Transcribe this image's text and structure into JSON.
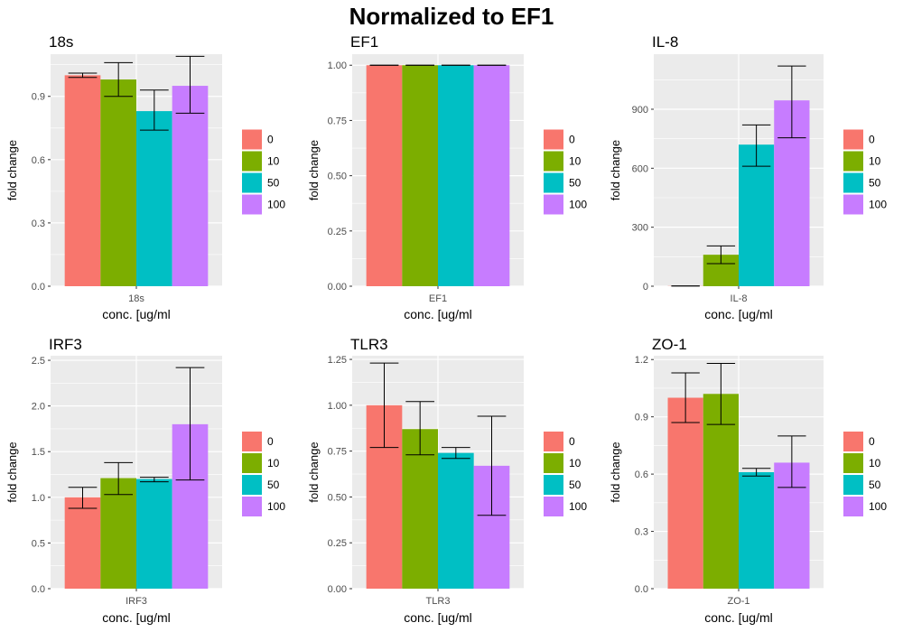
{
  "title": "Normalized to EF1",
  "legend": {
    "labels": [
      "0",
      "10",
      "50",
      "100"
    ],
    "colors": [
      "#F8766D",
      "#7CAE00",
      "#00BFC4",
      "#C77CFF"
    ]
  },
  "chart_data": [
    {
      "type": "bar",
      "title": "18s",
      "xlabel": "conc. [ug/ml",
      "ylabel": "fold change",
      "categories": [
        "18s"
      ],
      "ylim": [
        0,
        1.1
      ],
      "yticks": [
        0.0,
        0.3,
        0.6,
        0.9
      ],
      "ytick_labels": [
        "0.0",
        "0.3",
        "0.6",
        "0.9"
      ],
      "grid": true,
      "legend_position": "right",
      "series": [
        {
          "name": "0",
          "values": [
            1.0
          ],
          "error_low": [
            0.99
          ],
          "error_high": [
            1.01
          ]
        },
        {
          "name": "10",
          "values": [
            0.98
          ],
          "error_low": [
            0.9
          ],
          "error_high": [
            1.06
          ]
        },
        {
          "name": "50",
          "values": [
            0.83
          ],
          "error_low": [
            0.74
          ],
          "error_high": [
            0.93
          ]
        },
        {
          "name": "100",
          "values": [
            0.95
          ],
          "error_low": [
            0.82
          ],
          "error_high": [
            1.09
          ]
        }
      ]
    },
    {
      "type": "bar",
      "title": "EF1",
      "xlabel": "conc. [ug/ml",
      "ylabel": "fold change",
      "categories": [
        "EF1"
      ],
      "ylim": [
        0,
        1.05
      ],
      "yticks": [
        0.0,
        0.25,
        0.5,
        0.75,
        1.0
      ],
      "ytick_labels": [
        "0.00",
        "0.25",
        "0.50",
        "0.75",
        "1.00"
      ],
      "grid": true,
      "legend_position": "right",
      "series": [
        {
          "name": "0",
          "values": [
            1.0
          ],
          "error_low": [
            1.0
          ],
          "error_high": [
            1.0
          ]
        },
        {
          "name": "10",
          "values": [
            1.0
          ],
          "error_low": [
            1.0
          ],
          "error_high": [
            1.0
          ]
        },
        {
          "name": "50",
          "values": [
            1.0
          ],
          "error_low": [
            1.0
          ],
          "error_high": [
            1.0
          ]
        },
        {
          "name": "100",
          "values": [
            1.0
          ],
          "error_low": [
            1.0
          ],
          "error_high": [
            1.0
          ]
        }
      ]
    },
    {
      "type": "bar",
      "title": "IL-8",
      "xlabel": "conc. [ug/ml",
      "ylabel": "fold change",
      "categories": [
        "IL-8"
      ],
      "ylim": [
        0,
        1180
      ],
      "yticks": [
        0,
        300,
        600,
        900
      ],
      "ytick_labels": [
        "0",
        "300",
        "600",
        "900"
      ],
      "grid": true,
      "legend_position": "right",
      "series": [
        {
          "name": "0",
          "values": [
            1
          ],
          "error_low": [
            1
          ],
          "error_high": [
            1
          ]
        },
        {
          "name": "10",
          "values": [
            160
          ],
          "error_low": [
            115
          ],
          "error_high": [
            205
          ]
        },
        {
          "name": "50",
          "values": [
            720
          ],
          "error_low": [
            610
          ],
          "error_high": [
            820
          ]
        },
        {
          "name": "100",
          "values": [
            945
          ],
          "error_low": [
            755
          ],
          "error_high": [
            1120
          ]
        }
      ]
    },
    {
      "type": "bar",
      "title": "IRF3",
      "xlabel": "conc. [ug/ml",
      "ylabel": "fold change",
      "categories": [
        "IRF3"
      ],
      "ylim": [
        0,
        2.55
      ],
      "yticks": [
        0.0,
        0.5,
        1.0,
        1.5,
        2.0,
        2.5
      ],
      "ytick_labels": [
        "0.0",
        "0.5",
        "1.0",
        "1.5",
        "2.0",
        "2.5"
      ],
      "grid": true,
      "legend_position": "right",
      "series": [
        {
          "name": "0",
          "values": [
            1.0
          ],
          "error_low": [
            0.88
          ],
          "error_high": [
            1.11
          ]
        },
        {
          "name": "10",
          "values": [
            1.21
          ],
          "error_low": [
            1.03
          ],
          "error_high": [
            1.38
          ]
        },
        {
          "name": "50",
          "values": [
            1.2
          ],
          "error_low": [
            1.17
          ],
          "error_high": [
            1.22
          ]
        },
        {
          "name": "100",
          "values": [
            1.8
          ],
          "error_low": [
            1.19
          ],
          "error_high": [
            2.42
          ]
        }
      ]
    },
    {
      "type": "bar",
      "title": "TLR3",
      "xlabel": "conc. [ug/ml",
      "ylabel": "fold change",
      "categories": [
        "TLR3"
      ],
      "ylim": [
        0,
        1.27
      ],
      "yticks": [
        0.0,
        0.25,
        0.5,
        0.75,
        1.0,
        1.25
      ],
      "ytick_labels": [
        "0.00",
        "0.25",
        "0.50",
        "0.75",
        "1.00",
        "1.25"
      ],
      "grid": true,
      "legend_position": "right",
      "series": [
        {
          "name": "0",
          "values": [
            1.0
          ],
          "error_low": [
            0.77
          ],
          "error_high": [
            1.23
          ]
        },
        {
          "name": "10",
          "values": [
            0.87
          ],
          "error_low": [
            0.73
          ],
          "error_high": [
            1.02
          ]
        },
        {
          "name": "50",
          "values": [
            0.74
          ],
          "error_low": [
            0.71
          ],
          "error_high": [
            0.77
          ]
        },
        {
          "name": "100",
          "values": [
            0.67
          ],
          "error_low": [
            0.4
          ],
          "error_high": [
            0.94
          ]
        }
      ]
    },
    {
      "type": "bar",
      "title": "ZO-1",
      "xlabel": "conc. [ug/ml",
      "ylabel": "fold change",
      "categories": [
        "ZO-1"
      ],
      "ylim": [
        0,
        1.22
      ],
      "yticks": [
        0.0,
        0.3,
        0.6,
        0.9,
        1.2
      ],
      "ytick_labels": [
        "0.0",
        "0.3",
        "0.6",
        "0.9",
        "1.2"
      ],
      "grid": true,
      "legend_position": "right",
      "series": [
        {
          "name": "0",
          "values": [
            1.0
          ],
          "error_low": [
            0.87
          ],
          "error_high": [
            1.13
          ]
        },
        {
          "name": "10",
          "values": [
            1.02
          ],
          "error_low": [
            0.86
          ],
          "error_high": [
            1.18
          ]
        },
        {
          "name": "50",
          "values": [
            0.61
          ],
          "error_low": [
            0.59
          ],
          "error_high": [
            0.63
          ]
        },
        {
          "name": "100",
          "values": [
            0.66
          ],
          "error_low": [
            0.53
          ],
          "error_high": [
            0.8
          ]
        }
      ]
    }
  ]
}
